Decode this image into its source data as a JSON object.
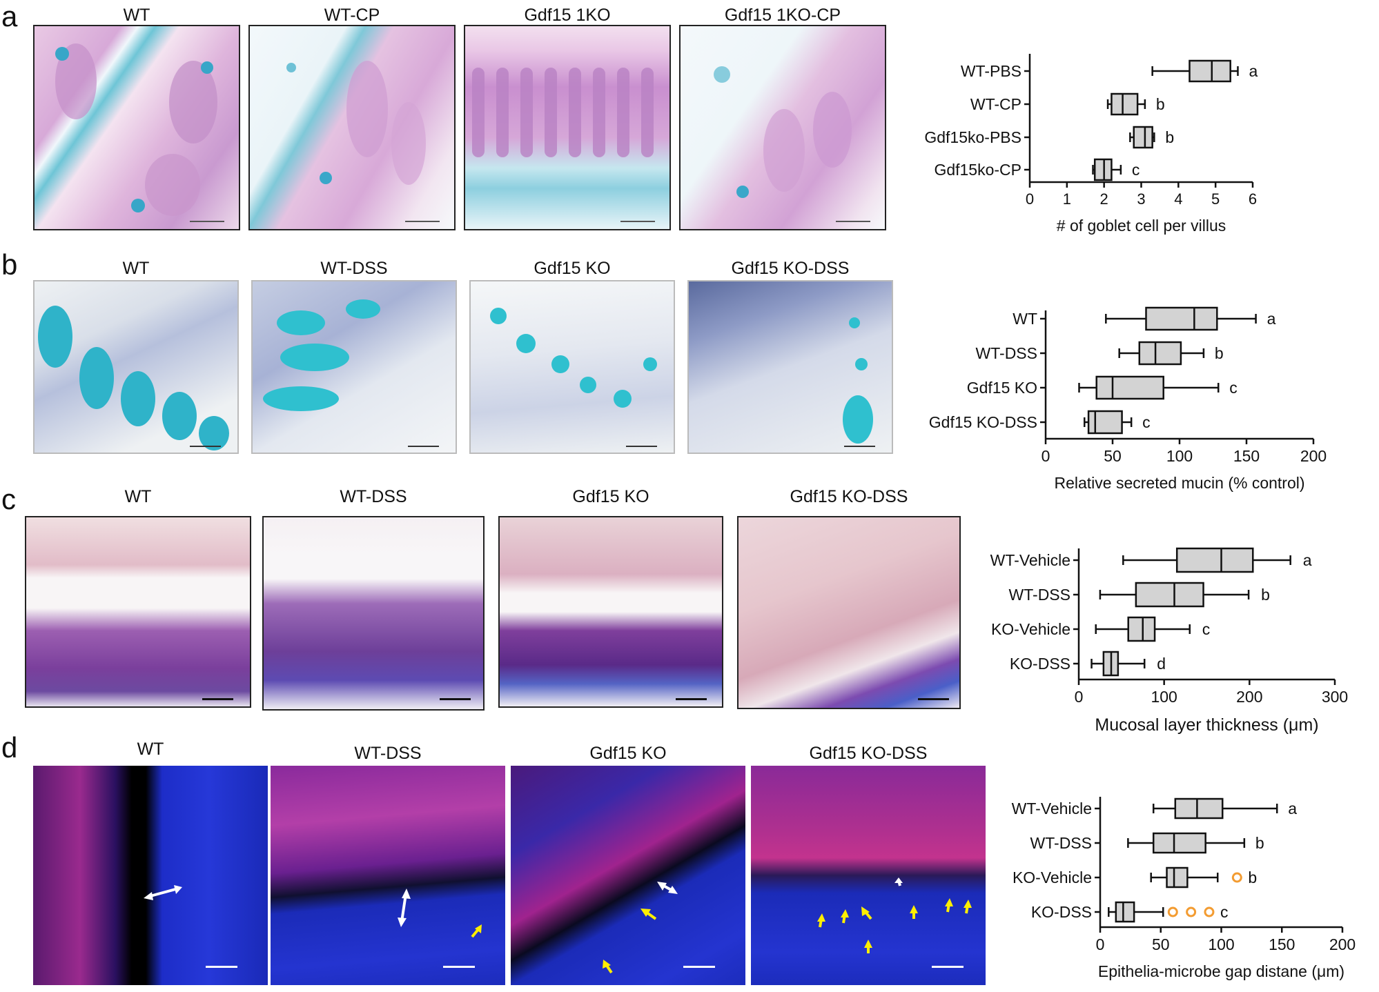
{
  "panels": [
    {
      "letter": "a",
      "images": [
        {
          "title": "WT",
          "stain": "alcian-pas"
        },
        {
          "title": "WT-CP",
          "stain": "alcian-pas-light"
        },
        {
          "title": "Gdf15 1KO",
          "stain": "alcian-pas-villi"
        },
        {
          "title": "Gdf15 1KO-CP",
          "stain": "alcian-pas-light"
        }
      ]
    },
    {
      "letter": "b",
      "images": [
        {
          "title": "WT",
          "stain": "alcian-blue"
        },
        {
          "title": "WT-DSS",
          "stain": "alcian-blue"
        },
        {
          "title": "Gdf15 KO",
          "stain": "alcian-blue-light"
        },
        {
          "title": "Gdf15 KO-DSS",
          "stain": "alcian-blue-inflamed"
        }
      ]
    },
    {
      "letter": "c",
      "images": [
        {
          "title": "WT",
          "stain": "trichrome"
        },
        {
          "title": "WT-DSS",
          "stain": "trichrome-dark"
        },
        {
          "title": "Gdf15 KO",
          "stain": "trichrome"
        },
        {
          "title": "Gdf15 KO-DSS",
          "stain": "trichrome-thin"
        }
      ]
    },
    {
      "letter": "d",
      "images": [
        {
          "title": "WT",
          "stain": "fish"
        },
        {
          "title": "WT-DSS",
          "stain": "fish"
        },
        {
          "title": "Gdf15 KO",
          "stain": "fish"
        },
        {
          "title": "Gdf15 KO-DSS",
          "stain": "fish"
        }
      ]
    }
  ],
  "chart_data": [
    {
      "type": "boxplot",
      "orientation": "horizontal",
      "categories": [
        "WT-PBS",
        "WT-CP",
        "Gdf15ko-PBS",
        "Gdf15ko-CP"
      ],
      "boxes": [
        {
          "min": 3.3,
          "q1": 4.3,
          "median": 4.9,
          "q3": 5.4,
          "max": 5.6
        },
        {
          "min": 2.1,
          "q1": 2.2,
          "median": 2.5,
          "q3": 2.9,
          "max": 3.1
        },
        {
          "min": 2.7,
          "q1": 2.8,
          "median": 3.1,
          "q3": 3.3,
          "max": 3.35
        },
        {
          "min": 1.7,
          "q1": 1.75,
          "median": 2.0,
          "q3": 2.2,
          "max": 2.45
        }
      ],
      "letters": [
        "a",
        "b",
        "b",
        "c"
      ],
      "xlim": [
        0,
        6
      ],
      "xticks": [
        "0",
        "1",
        "2",
        "3",
        "4",
        "5",
        "6"
      ],
      "xlabel": "# of goblet cell per villus"
    },
    {
      "type": "boxplot",
      "orientation": "horizontal",
      "categories": [
        "WT",
        "WT-DSS",
        "Gdf15 KO",
        "Gdf15 KO-DSS"
      ],
      "boxes": [
        {
          "min": 45,
          "q1": 75,
          "median": 111,
          "q3": 128,
          "max": 157
        },
        {
          "min": 55,
          "q1": 70,
          "median": 82,
          "q3": 101,
          "max": 118
        },
        {
          "min": 25,
          "q1": 38,
          "median": 50,
          "q3": 88,
          "max": 129
        },
        {
          "min": 29,
          "q1": 32,
          "median": 37,
          "q3": 57,
          "max": 64
        }
      ],
      "letters": [
        "a",
        "b",
        "c",
        "c"
      ],
      "xlim": [
        0,
        200
      ],
      "xticks": [
        "0",
        "50",
        "100",
        "150",
        "200"
      ],
      "xlabel": "Relative secreted mucin (% control)"
    },
    {
      "type": "boxplot",
      "orientation": "horizontal",
      "categories": [
        "WT-Vehicle",
        "WT-DSS",
        "KO-Vehicle",
        "KO-DSS"
      ],
      "boxes": [
        {
          "min": 52,
          "q1": 115,
          "median": 167,
          "q3": 204,
          "max": 248
        },
        {
          "min": 25,
          "q1": 67,
          "median": 112,
          "q3": 146,
          "max": 199
        },
        {
          "min": 20,
          "q1": 58,
          "median": 75,
          "q3": 89,
          "max": 130
        },
        {
          "min": 15,
          "q1": 29,
          "median": 38,
          "q3": 46,
          "max": 77
        }
      ],
      "letters": [
        "a",
        "b",
        "c",
        "d"
      ],
      "xlim": [
        0,
        300
      ],
      "xticks": [
        "0",
        "100",
        "200",
        "300"
      ],
      "xlabel": "Mucosal layer thickness (μm)"
    },
    {
      "type": "boxplot",
      "orientation": "horizontal",
      "categories": [
        "WT-Vehicle",
        "WT-DSS",
        "KO-Vehicle",
        "KO-DSS"
      ],
      "boxes": [
        {
          "min": 44,
          "q1": 62,
          "median": 80,
          "q3": 101,
          "max": 146
        },
        {
          "min": 23,
          "q1": 44,
          "median": 61,
          "q3": 87,
          "max": 119
        },
        {
          "min": 42,
          "q1": 55,
          "median": 61,
          "q3": 72,
          "max": 97
        },
        {
          "min": 7,
          "q1": 13,
          "median": 19,
          "q3": 28,
          "max": 52
        }
      ],
      "outliers": [
        [],
        [],
        [
          113
        ],
        [
          60,
          75,
          90
        ]
      ],
      "letters": [
        "a",
        "b",
        "b",
        "c"
      ],
      "xlim": [
        0,
        200
      ],
      "xticks": [
        "0",
        "50",
        "100",
        "150",
        "200"
      ],
      "xlabel": "Epithelia-microbe gap distane (μm)"
    }
  ],
  "colors": {
    "box_fill": "#d3d3d3",
    "outlier": "#f39c32",
    "arrow_yellow": "#ffee00",
    "arrow_white": "#ffffff"
  }
}
